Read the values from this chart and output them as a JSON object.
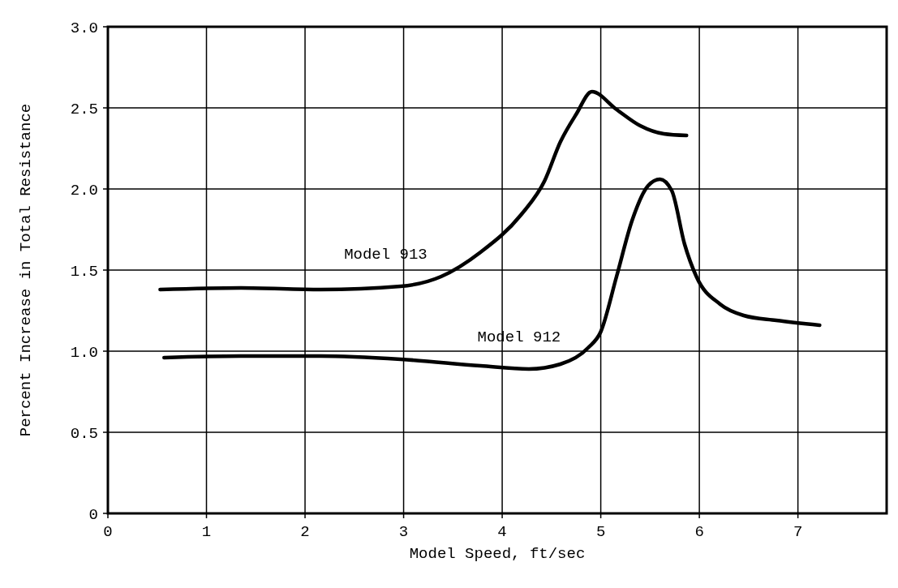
{
  "chart_data": {
    "type": "line",
    "xlabel": "Model Speed, ft/sec",
    "ylabel": "Percent Increase in Total Resistance",
    "xlim": [
      0,
      7.9
    ],
    "xticks": [
      0,
      1,
      2,
      3,
      4,
      5,
      6,
      7
    ],
    "ylim": [
      0,
      3
    ],
    "yticks": [
      {
        "value": 0,
        "label": "0"
      },
      0.5,
      {
        "value": 1,
        "label": "1.0"
      },
      1.5,
      {
        "value": 2,
        "label": "2.0"
      },
      2.5,
      {
        "value": 3,
        "label": "3.0"
      }
    ],
    "grid": true,
    "marker": "none",
    "line_style": "solid",
    "series": [
      {
        "name": "Model 913",
        "color": "#000000",
        "x": [
          0.53,
          1.35,
          2.16,
          2.97,
          3.38,
          3.78,
          4.19,
          4.43,
          4.59,
          4.75,
          4.91,
          5.16,
          5.4,
          5.64,
          5.87
        ],
        "values": [
          1.38,
          1.39,
          1.38,
          1.4,
          1.46,
          1.61,
          1.84,
          2.05,
          2.29,
          2.46,
          2.6,
          2.49,
          2.39,
          2.34,
          2.33
        ]
      },
      {
        "name": "Model 912",
        "color": "#000000",
        "x": [
          0.57,
          1.35,
          2.16,
          2.97,
          3.78,
          4.27,
          4.59,
          4.87,
          5.0,
          5.16,
          5.32,
          5.48,
          5.6,
          5.72,
          5.85,
          5.97,
          6.21,
          6.45,
          6.78,
          7.22
        ],
        "values": [
          0.96,
          0.97,
          0.97,
          0.95,
          0.91,
          0.89,
          0.92,
          1.02,
          1.12,
          1.46,
          1.81,
          2.02,
          2.06,
          1.99,
          1.66,
          1.46,
          1.29,
          1.22,
          1.19,
          1.16
        ]
      }
    ]
  }
}
